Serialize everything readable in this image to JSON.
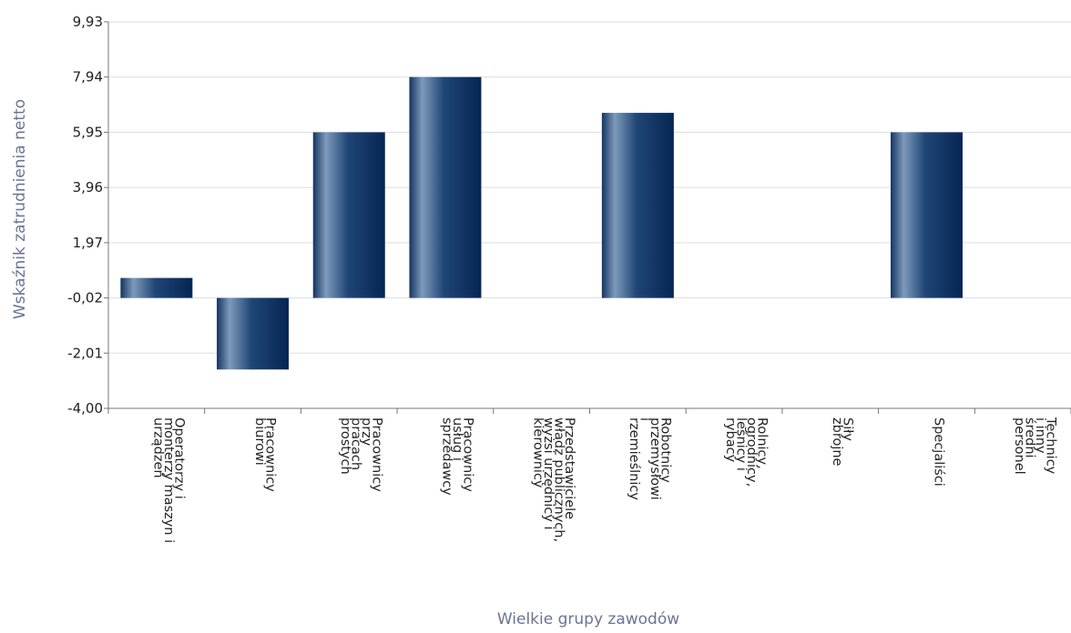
{
  "chart_data": {
    "type": "bar",
    "title": "",
    "xlabel": "Wielkie grupy zawodów",
    "ylabel": "Wskaźnik zatrudnienia netto",
    "ylim": [
      -4.0,
      9.93
    ],
    "yticks": [
      "9,93",
      "7,94",
      "5,95",
      "3,96",
      "1,97",
      "-0,02",
      "-2,01",
      "-4,00"
    ],
    "ytick_values": [
      9.93,
      7.94,
      5.95,
      3.96,
      1.97,
      -0.02,
      -2.01,
      -4.0
    ],
    "grid": true,
    "categories": [
      [
        "Operatorzy i",
        "monterzy maszyn i",
        "urządzeń"
      ],
      [
        "Pracownicy",
        "biurowi"
      ],
      [
        "Pracownicy",
        "przy",
        "pracach",
        "prostych"
      ],
      [
        "Pracownicy",
        "usług i",
        "sprzedawcy"
      ],
      [
        "Przedstawiciele",
        "władz publicznych,",
        "wyżsi urzędnicy i",
        "kierownicy"
      ],
      [
        "Robotnicy",
        "przemysłowi",
        "i",
        "rzemieślnicy"
      ],
      [
        "Rolnicy,",
        "ogrodnicy,",
        "leśnicy i",
        "rybacy"
      ],
      [
        "Siły",
        "zbrojne"
      ],
      [
        "Specjaliści"
      ],
      [
        "Technicy",
        "i inny",
        "średni",
        "personel"
      ]
    ],
    "values": [
      0.7,
      -2.6,
      5.95,
      7.94,
      null,
      6.65,
      null,
      null,
      5.95,
      null
    ],
    "bar_color": "#0e3465"
  }
}
